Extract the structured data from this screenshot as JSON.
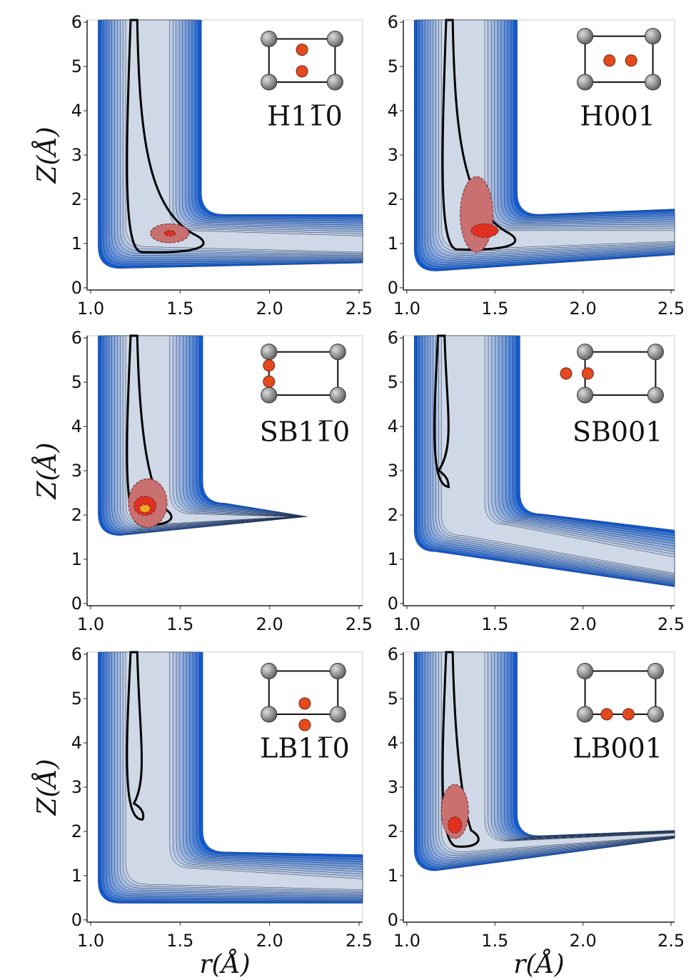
{
  "chart_data": [
    {
      "type": "contour",
      "label": "H11̅0",
      "ylabel": "Z(Å)",
      "xlim": [
        0.98,
        2.52
      ],
      "ylim": [
        -0.05,
        6.05
      ],
      "xticks": [
        {
          "value": 1,
          "label": "1.0"
        },
        1.5,
        {
          "value": 2,
          "label": "2.0"
        },
        2.5
      ],
      "yticks": [
        0,
        1,
        2,
        3,
        4,
        5,
        6
      ]
    },
    {
      "type": "contour",
      "label": "H001",
      "xlim": [
        0.98,
        2.52
      ],
      "ylim": [
        -0.05,
        6.05
      ],
      "xticks": [
        {
          "value": 1,
          "label": "1.0"
        },
        1.5,
        {
          "value": 2,
          "label": "2.0"
        },
        2.5
      ],
      "yticks": [
        0,
        1,
        2,
        3,
        4,
        5,
        6
      ]
    },
    {
      "type": "contour",
      "label": "SB11̅0",
      "ylabel": "Z(Å)",
      "xlim": [
        0.98,
        2.52
      ],
      "ylim": [
        -0.05,
        6.05
      ],
      "xticks": [
        {
          "value": 1,
          "label": "1.0"
        },
        1.5,
        {
          "value": 2,
          "label": "2.0"
        },
        2.5
      ],
      "yticks": [
        0,
        1,
        2,
        3,
        4,
        5,
        6
      ]
    },
    {
      "type": "contour",
      "label": "SB001",
      "xlim": [
        0.98,
        2.52
      ],
      "ylim": [
        -0.05,
        6.05
      ],
      "xticks": [
        {
          "value": 1,
          "label": "1.0"
        },
        1.5,
        {
          "value": 2,
          "label": "2.0"
        },
        2.5
      ],
      "yticks": [
        0,
        1,
        2,
        3,
        4,
        5,
        6
      ]
    },
    {
      "type": "contour",
      "label": "LB11̅0",
      "ylabel": "Z(Å)",
      "xlabel": "r(Å)",
      "xlim": [
        0.98,
        2.52
      ],
      "ylim": [
        -0.05,
        6.05
      ],
      "xticks": [
        {
          "value": 1,
          "label": "1.0"
        },
        1.5,
        {
          "value": 2,
          "label": "2.0"
        },
        2.5
      ],
      "yticks": [
        0,
        1,
        2,
        3,
        4,
        5,
        6
      ]
    },
    {
      "type": "contour",
      "label": "LB001",
      "xlabel": "r(Å)",
      "xlim": [
        0.98,
        2.52
      ],
      "ylim": [
        -0.05,
        6.05
      ],
      "xticks": [
        {
          "value": 1,
          "label": "1.0"
        },
        1.5,
        {
          "value": 2,
          "label": "2.0"
        },
        2.5
      ],
      "yticks": [
        0,
        1,
        2,
        3,
        4,
        5,
        6
      ]
    }
  ]
}
